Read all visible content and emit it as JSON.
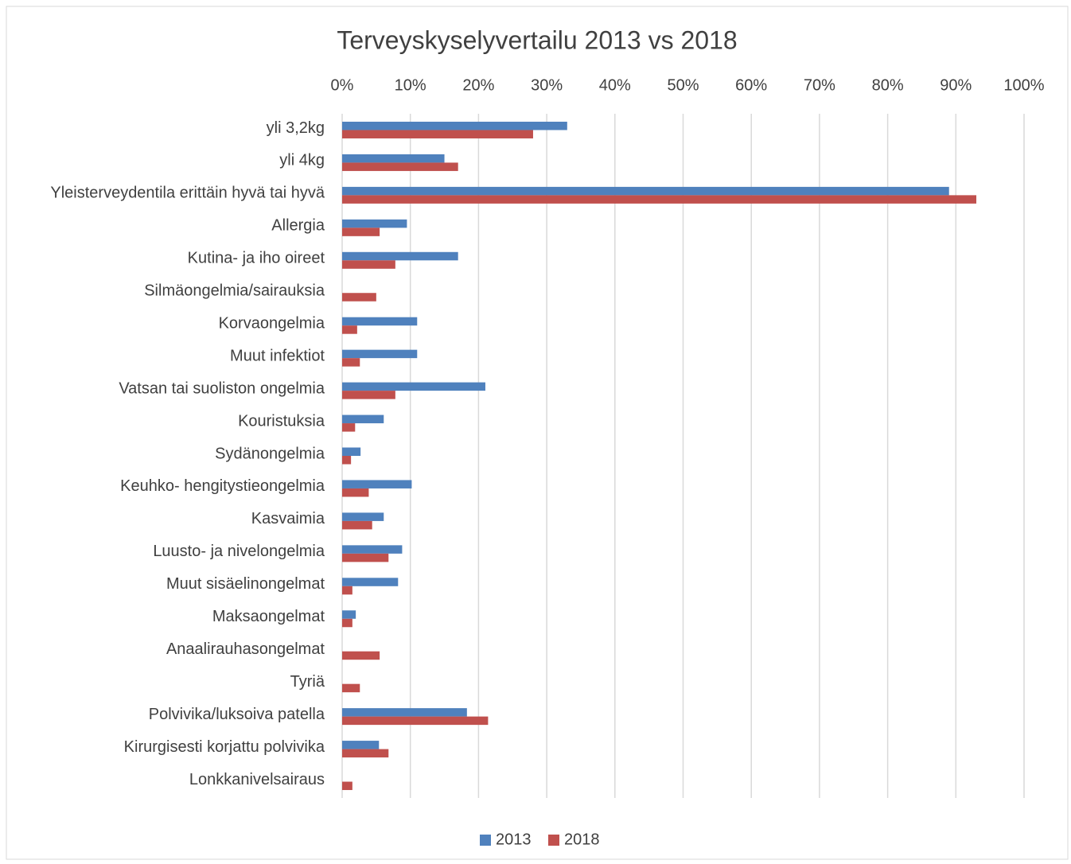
{
  "chart_data": {
    "type": "bar",
    "orientation": "horizontal",
    "title": "Terveyskyselyvertailu 2013 vs 2018",
    "categories": [
      "yli 3,2kg",
      "yli 4kg",
      "Yleisterveydentila erittäin hyvä tai hyvä",
      "Allergia",
      "Kutina- ja iho oireet",
      "Silmäongelmia/sairauksia",
      "Korvaongelmia",
      "Muut infektiot",
      "Vatsan tai suoliston ongelmia",
      "Kouristuksia",
      "Sydänongelmia",
      "Keuhko- hengitystieongelmia",
      "Kasvaimia",
      "Luusto- ja nivelongelmia",
      "Muut sisäelinongelmat",
      "Maksaongelmat",
      "Anaalirauhasongelmat",
      "Tyriä",
      "Polvivika/luksoiva patella",
      "Kirurgisesti korjattu polvivika",
      "Lonkkanivelsairaus"
    ],
    "series": [
      {
        "name": "2013",
        "color": "#4f81bd",
        "values": [
          33,
          15,
          89,
          9.5,
          17,
          0,
          11,
          11,
          21,
          6.1,
          2.7,
          10.2,
          6.1,
          8.8,
          8.2,
          2,
          0,
          0,
          18.3,
          5.4,
          0
        ]
      },
      {
        "name": "2018",
        "color": "#c0504d",
        "values": [
          28,
          17,
          93,
          5.5,
          7.8,
          5,
          2.2,
          2.6,
          7.8,
          1.9,
          1.3,
          3.9,
          4.4,
          6.8,
          1.5,
          1.5,
          5.5,
          2.6,
          21.4,
          6.8,
          1.5
        ]
      }
    ],
    "xlim": [
      0,
      100
    ],
    "xticks": [
      {
        "value": 0,
        "label": "0%"
      },
      {
        "value": 10,
        "label": "10%"
      },
      {
        "value": 20,
        "label": "20%"
      },
      {
        "value": 30,
        "label": "30%"
      },
      {
        "value": 40,
        "label": "40%"
      },
      {
        "value": 50,
        "label": "50%"
      },
      {
        "value": 60,
        "label": "60%"
      },
      {
        "value": 70,
        "label": "70%"
      },
      {
        "value": 80,
        "label": "80%"
      },
      {
        "value": 90,
        "label": "90%"
      },
      {
        "value": 100,
        "label": "100%"
      }
    ],
    "grid": true,
    "legend": "bottom"
  }
}
